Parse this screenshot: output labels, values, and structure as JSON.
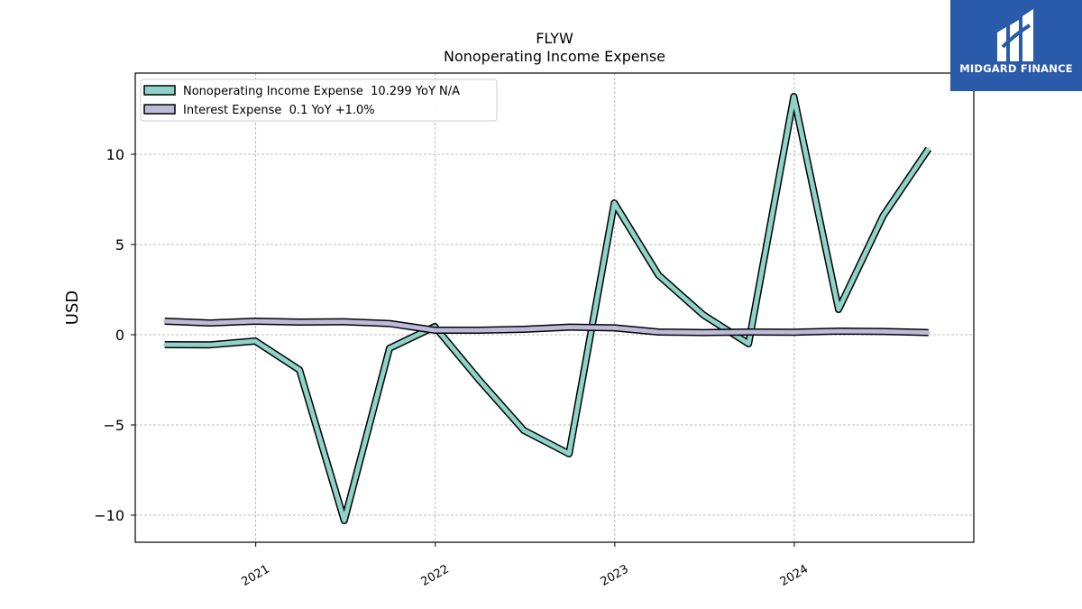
{
  "brand": {
    "name": "MIDGARD FINANCE",
    "logo_icon": "midgard-finance-logo-icon",
    "bg_color": "#2a5aaa"
  },
  "chart_data": {
    "type": "line",
    "title": "FLYW",
    "subtitle": "Nonoperating Income Expense",
    "xlabel": "",
    "ylabel": "USD",
    "ylim": [
      -11.5,
      14.5
    ],
    "xlim": [
      "2020-05-01",
      "2024-12-31"
    ],
    "grid": true,
    "legend_position": "upper-left",
    "y_ticks": [
      -10,
      -5,
      0,
      5,
      10
    ],
    "y_tick_labels": [
      "−10",
      "−5",
      "0",
      "5",
      "10"
    ],
    "x_ticks": [
      "2021-01-01",
      "2022-01-01",
      "2023-01-01",
      "2024-01-01"
    ],
    "x_tick_labels": [
      "2021",
      "2022",
      "2023",
      "2024"
    ],
    "series": [
      {
        "name": "Nonoperating Income Expense",
        "legend_label": "Nonoperating Income Expense  10.299 YoY N/A",
        "color": "#8dd3c7",
        "x": [
          "2020-06-30",
          "2020-09-30",
          "2020-12-31",
          "2021-03-31",
          "2021-06-30",
          "2021-09-30",
          "2021-12-31",
          "2022-03-31",
          "2022-06-30",
          "2022-09-30",
          "2022-12-31",
          "2023-03-31",
          "2023-06-30",
          "2023-09-30",
          "2023-12-31",
          "2024-03-31",
          "2024-06-30",
          "2024-09-30"
        ],
        "values": [
          -0.55,
          -0.56,
          -0.35,
          -1.95,
          -10.3,
          -0.75,
          0.45,
          -2.5,
          -5.3,
          -6.6,
          7.3,
          3.3,
          1.1,
          -0.5,
          13.2,
          1.4,
          6.6,
          10.3
        ]
      },
      {
        "name": "Interest Expense",
        "legend_label": "Interest Expense  0.1 YoY +1.0%",
        "color": "#bebada",
        "x": [
          "2020-06-30",
          "2020-09-30",
          "2020-12-31",
          "2021-03-31",
          "2021-06-30",
          "2021-09-30",
          "2021-12-31",
          "2022-03-31",
          "2022-06-30",
          "2022-09-30",
          "2022-12-31",
          "2023-03-31",
          "2023-06-30",
          "2023-09-30",
          "2023-12-31",
          "2024-03-31",
          "2024-06-30",
          "2024-09-30"
        ],
        "values": [
          0.75,
          0.65,
          0.75,
          0.7,
          0.72,
          0.62,
          0.25,
          0.25,
          0.3,
          0.42,
          0.38,
          0.15,
          0.12,
          0.15,
          0.14,
          0.2,
          0.18,
          0.12
        ]
      }
    ]
  }
}
